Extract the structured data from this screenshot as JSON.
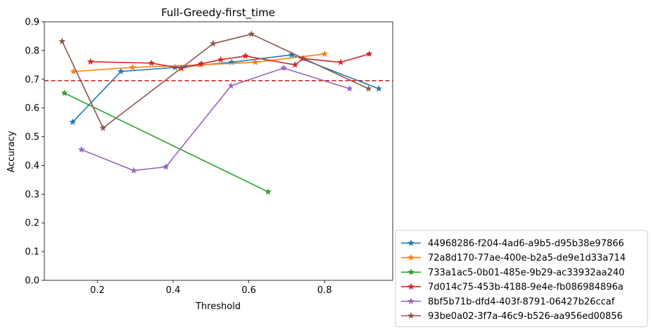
{
  "chart_data": {
    "type": "line",
    "title": "Full-Greedy-first_time",
    "xlabel": "Threshold",
    "ylabel": "Accuracy",
    "xlim": [
      0.06,
      0.98
    ],
    "ylim": [
      0.0,
      0.9
    ],
    "xticks": [
      0.2,
      0.4,
      0.6,
      0.8
    ],
    "xtick_labels": [
      "0.2",
      "0.4",
      "0.6",
      "0.8"
    ],
    "yticks": [
      0.0,
      0.1,
      0.2,
      0.3,
      0.4,
      0.5,
      0.6,
      0.7,
      0.8,
      0.9
    ],
    "ytick_labels": [
      "0.0",
      "0.1",
      "0.2",
      "0.3",
      "0.4",
      "0.5",
      "0.6",
      "0.7",
      "0.8",
      "0.9"
    ],
    "grid": false,
    "marker": "star",
    "legend_placement": "outside-lower-right",
    "reference_line": {
      "y": 0.695,
      "color": "#d62728",
      "style": "dashed"
    },
    "series": [
      {
        "name": "44968286-f204-4ad6-a9b5-d95b38e97866",
        "color": "#1f77b4",
        "x": [
          0.135,
          0.262,
          0.405,
          0.555,
          0.713,
          0.943
        ],
        "y": [
          0.551,
          0.727,
          0.741,
          0.759,
          0.785,
          0.667
        ]
      },
      {
        "name": "72a8d170-77ae-400e-b2a5-de9e1d33a714",
        "color": "#ff7f0e",
        "x": [
          0.137,
          0.293,
          0.471,
          0.617,
          0.8
        ],
        "y": [
          0.727,
          0.741,
          0.75,
          0.759,
          0.788
        ]
      },
      {
        "name": "733a1ac5-0b01-485e-9b29-ac33932aa240",
        "color": "#2ca02c",
        "x": [
          0.113,
          0.651
        ],
        "y": [
          0.652,
          0.308
        ]
      },
      {
        "name": "7d014c75-453b-4188-9e4e-fb086984896a",
        "color": "#d62728",
        "x": [
          0.182,
          0.343,
          0.422,
          0.475,
          0.526,
          0.591,
          0.722,
          0.743,
          0.843,
          0.918
        ],
        "y": [
          0.761,
          0.756,
          0.738,
          0.754,
          0.768,
          0.781,
          0.75,
          0.772,
          0.759,
          0.788
        ]
      },
      {
        "name": "8bf5b71b-dfd4-403f-8791-06427b26ccaf",
        "color": "#9467bd",
        "x": [
          0.158,
          0.296,
          0.381,
          0.553,
          0.692,
          0.866
        ],
        "y": [
          0.455,
          0.382,
          0.395,
          0.677,
          0.739,
          0.667
        ]
      },
      {
        "name": "93be0a02-3f7a-46c9-b526-aa956ed00856",
        "color": "#8c564b",
        "x": [
          0.107,
          0.215,
          0.506,
          0.607,
          0.916
        ],
        "y": [
          0.832,
          0.53,
          0.824,
          0.857,
          0.667
        ]
      }
    ]
  }
}
